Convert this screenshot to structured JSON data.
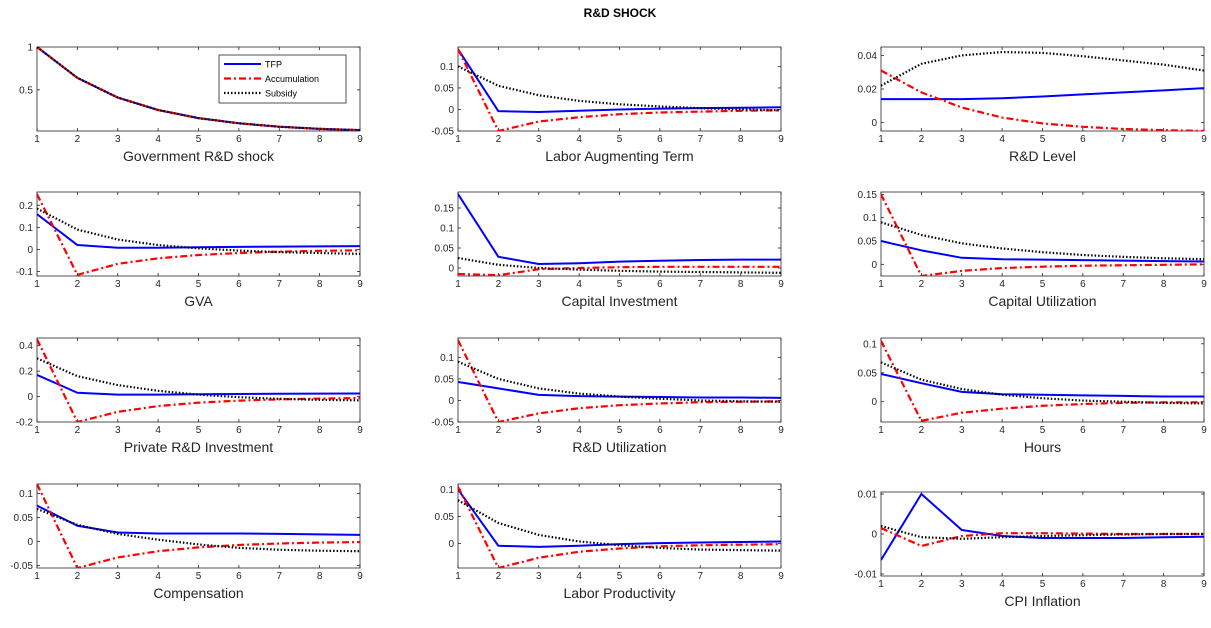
{
  "figure_title": "R&D SHOCK",
  "legend": {
    "placement": "top-right of first panel",
    "entries": [
      {
        "label": "TFP",
        "style": "solid",
        "color": "#0000ff"
      },
      {
        "label": "Accumulation",
        "style": "dash-dot",
        "color": "#ff0000"
      },
      {
        "label": "Subsidy",
        "style": "dotted",
        "color": "#000000"
      }
    ]
  },
  "chart_data": [
    {
      "type": "line",
      "xlabel": "Government R&D shock",
      "x": [
        1,
        2,
        3,
        4,
        5,
        6,
        7,
        8,
        9
      ],
      "xlim": [
        1,
        9
      ],
      "ylim": [
        0.02,
        1.0
      ],
      "yticks": [
        {
          "v": 0.5,
          "label": "0.5"
        },
        {
          "v": 1.0,
          "label": "1"
        }
      ],
      "series": [
        {
          "name": "TFP",
          "values": [
            1.0,
            0.64,
            0.41,
            0.265,
            0.17,
            0.11,
            0.07,
            0.045,
            0.03
          ]
        },
        {
          "name": "Accumulation",
          "values": [
            1.0,
            0.64,
            0.41,
            0.265,
            0.17,
            0.11,
            0.07,
            0.045,
            0.03
          ]
        },
        {
          "name": "Subsidy",
          "values": [
            1.0,
            0.64,
            0.41,
            0.265,
            0.17,
            0.11,
            0.07,
            0.045,
            0.03
          ]
        }
      ]
    },
    {
      "type": "line",
      "xlabel": "Labor  Augmenting Term",
      "x": [
        1,
        2,
        3,
        4,
        5,
        6,
        7,
        8,
        9
      ],
      "xlim": [
        1,
        9
      ],
      "ylim": [
        -0.05,
        0.145
      ],
      "yticks": [
        {
          "v": -0.05,
          "label": "-0.05"
        },
        {
          "v": 0,
          "label": "0"
        },
        {
          "v": 0.05,
          "label": "0.05"
        },
        {
          "v": 0.1,
          "label": "0.1"
        }
      ],
      "series": [
        {
          "name": "TFP",
          "values": [
            0.14,
            -0.004,
            -0.006,
            -0.003,
            0.0,
            0.002,
            0.003,
            0.004,
            0.005
          ]
        },
        {
          "name": "Accumulation",
          "values": [
            0.14,
            -0.05,
            -0.028,
            -0.018,
            -0.011,
            -0.007,
            -0.005,
            -0.003,
            -0.002
          ]
        },
        {
          "name": "Subsidy",
          "values": [
            0.1,
            0.055,
            0.033,
            0.02,
            0.012,
            0.007,
            0.003,
            0.0,
            -0.002
          ]
        }
      ]
    },
    {
      "type": "line",
      "xlabel": "R&D Level",
      "x": [
        1,
        2,
        3,
        4,
        5,
        6,
        7,
        8,
        9
      ],
      "xlim": [
        1,
        9
      ],
      "ylim": [
        -0.005,
        0.045
      ],
      "yticks": [
        {
          "v": 0,
          "label": "0"
        },
        {
          "v": 0.02,
          "label": "0.02"
        },
        {
          "v": 0.04,
          "label": "0.04"
        }
      ],
      "series": [
        {
          "name": "TFP",
          "values": [
            0.014,
            0.014,
            0.014,
            0.0145,
            0.0155,
            0.0168,
            0.018,
            0.0192,
            0.0205
          ]
        },
        {
          "name": "Accumulation",
          "values": [
            0.031,
            0.018,
            0.009,
            0.003,
            -0.0005,
            -0.0025,
            -0.0038,
            -0.0045,
            -0.005
          ]
        },
        {
          "name": "Subsidy",
          "values": [
            0.022,
            0.035,
            0.04,
            0.042,
            0.0415,
            0.0395,
            0.037,
            0.0345,
            0.031
          ]
        }
      ]
    },
    {
      "type": "line",
      "xlabel": "GVA",
      "x": [
        1,
        2,
        3,
        4,
        5,
        6,
        7,
        8,
        9
      ],
      "xlim": [
        1,
        9
      ],
      "ylim": [
        -0.12,
        0.26
      ],
      "yticks": [
        {
          "v": -0.1,
          "label": "-0.1"
        },
        {
          "v": 0,
          "label": "0"
        },
        {
          "v": 0.1,
          "label": "0.1"
        },
        {
          "v": 0.2,
          "label": "0.2"
        }
      ],
      "series": [
        {
          "name": "TFP",
          "values": [
            0.16,
            0.02,
            0.008,
            0.008,
            0.01,
            0.012,
            0.013,
            0.014,
            0.015
          ]
        },
        {
          "name": "Accumulation",
          "values": [
            0.25,
            -0.115,
            -0.065,
            -0.04,
            -0.025,
            -0.016,
            -0.01,
            -0.006,
            -0.004
          ]
        },
        {
          "name": "Subsidy",
          "values": [
            0.185,
            0.09,
            0.045,
            0.02,
            0.005,
            -0.005,
            -0.012,
            -0.016,
            -0.02
          ]
        }
      ]
    },
    {
      "type": "line",
      "xlabel": "Capital Investment",
      "x": [
        1,
        2,
        3,
        4,
        5,
        6,
        7,
        8,
        9
      ],
      "xlim": [
        1,
        9
      ],
      "ylim": [
        -0.02,
        0.19
      ],
      "yticks": [
        {
          "v": 0,
          "label": "0"
        },
        {
          "v": 0.05,
          "label": "0.05"
        },
        {
          "v": 0.1,
          "label": "0.1"
        },
        {
          "v": 0.15,
          "label": "0.15"
        }
      ],
      "series": [
        {
          "name": "TFP",
          "values": [
            0.185,
            0.028,
            0.01,
            0.012,
            0.016,
            0.018,
            0.02,
            0.021,
            0.021
          ]
        },
        {
          "name": "Accumulation",
          "values": [
            -0.015,
            -0.018,
            -0.003,
            0.0,
            0.002,
            0.003,
            0.003,
            0.003,
            0.003
          ]
        },
        {
          "name": "Subsidy",
          "values": [
            0.025,
            0.008,
            0.0,
            -0.004,
            -0.007,
            -0.009,
            -0.01,
            -0.011,
            -0.012
          ]
        }
      ]
    },
    {
      "type": "line",
      "xlabel": "Capital Utilization",
      "x": [
        1,
        2,
        3,
        4,
        5,
        6,
        7,
        8,
        9
      ],
      "xlim": [
        1,
        9
      ],
      "ylim": [
        -0.025,
        0.155
      ],
      "yticks": [
        {
          "v": 0,
          "label": "0"
        },
        {
          "v": 0.05,
          "label": "0.05"
        },
        {
          "v": 0.1,
          "label": "0.1"
        },
        {
          "v": 0.15,
          "label": "0.15"
        }
      ],
      "series": [
        {
          "name": "TFP",
          "values": [
            0.05,
            0.03,
            0.014,
            0.011,
            0.01,
            0.009,
            0.008,
            0.007,
            0.006
          ]
        },
        {
          "name": "Accumulation",
          "values": [
            0.15,
            -0.025,
            -0.014,
            -0.008,
            -0.005,
            -0.003,
            -0.002,
            -0.001,
            0.0
          ]
        },
        {
          "name": "Subsidy",
          "values": [
            0.09,
            0.063,
            0.045,
            0.034,
            0.026,
            0.02,
            0.016,
            0.013,
            0.011
          ]
        }
      ]
    },
    {
      "type": "line",
      "xlabel": "Private R&D Investment",
      "x": [
        1,
        2,
        3,
        4,
        5,
        6,
        7,
        8,
        9
      ],
      "xlim": [
        1,
        9
      ],
      "ylim": [
        -0.2,
        0.46
      ],
      "yticks": [
        {
          "v": -0.2,
          "label": "-0.2"
        },
        {
          "v": 0,
          "label": "0"
        },
        {
          "v": 0.2,
          "label": "0.2"
        },
        {
          "v": 0.4,
          "label": "0.4"
        }
      ],
      "series": [
        {
          "name": "TFP",
          "values": [
            0.17,
            0.03,
            0.015,
            0.015,
            0.018,
            0.02,
            0.022,
            0.023,
            0.024
          ]
        },
        {
          "name": "Accumulation",
          "values": [
            0.45,
            -0.2,
            -0.12,
            -0.075,
            -0.048,
            -0.032,
            -0.022,
            -0.016,
            -0.012
          ]
        },
        {
          "name": "Subsidy",
          "values": [
            0.3,
            0.16,
            0.09,
            0.045,
            0.015,
            -0.005,
            -0.018,
            -0.026,
            -0.03
          ]
        }
      ]
    },
    {
      "type": "line",
      "xlabel": "R&D Utilization",
      "x": [
        1,
        2,
        3,
        4,
        5,
        6,
        7,
        8,
        9
      ],
      "xlim": [
        1,
        9
      ],
      "ylim": [
        -0.05,
        0.145
      ],
      "yticks": [
        {
          "v": -0.05,
          "label": "-0.05"
        },
        {
          "v": 0,
          "label": "0"
        },
        {
          "v": 0.05,
          "label": "0.05"
        },
        {
          "v": 0.1,
          "label": "0.1"
        }
      ],
      "series": [
        {
          "name": "TFP",
          "values": [
            0.043,
            0.028,
            0.013,
            0.01,
            0.009,
            0.008,
            0.007,
            0.007,
            0.006
          ]
        },
        {
          "name": "Accumulation",
          "values": [
            0.14,
            -0.05,
            -0.03,
            -0.018,
            -0.011,
            -0.007,
            -0.004,
            -0.003,
            -0.002
          ]
        },
        {
          "name": "Subsidy",
          "values": [
            0.09,
            0.05,
            0.028,
            0.016,
            0.009,
            0.004,
            0.0,
            -0.002,
            -0.003
          ]
        }
      ]
    },
    {
      "type": "line",
      "xlabel": "Hours",
      "x": [
        1,
        2,
        3,
        4,
        5,
        6,
        7,
        8,
        9
      ],
      "xlim": [
        1,
        9
      ],
      "ylim": [
        -0.035,
        0.11
      ],
      "yticks": [
        {
          "v": 0,
          "label": "0"
        },
        {
          "v": 0.05,
          "label": "0.05"
        },
        {
          "v": 0.1,
          "label": "0.1"
        }
      ],
      "series": [
        {
          "name": "TFP",
          "values": [
            0.048,
            0.032,
            0.017,
            0.013,
            0.012,
            0.011,
            0.01,
            0.009,
            0.009
          ]
        },
        {
          "name": "Accumulation",
          "values": [
            0.105,
            -0.033,
            -0.019,
            -0.012,
            -0.007,
            -0.004,
            -0.002,
            -0.001,
            -0.001
          ]
        },
        {
          "name": "Subsidy",
          "values": [
            0.068,
            0.038,
            0.022,
            0.012,
            0.006,
            0.002,
            0.0,
            -0.002,
            -0.003
          ]
        }
      ]
    },
    {
      "type": "line",
      "xlabel": "Compensation",
      "x": [
        1,
        2,
        3,
        4,
        5,
        6,
        7,
        8,
        9
      ],
      "xlim": [
        1,
        9
      ],
      "ylim": [
        -0.055,
        0.12
      ],
      "yticks": [
        {
          "v": -0.05,
          "label": "-0.05"
        },
        {
          "v": 0,
          "label": "0"
        },
        {
          "v": 0.05,
          "label": "0.05"
        },
        {
          "v": 0.1,
          "label": "0.1"
        }
      ],
      "series": [
        {
          "name": "TFP",
          "values": [
            0.075,
            0.033,
            0.019,
            0.017,
            0.017,
            0.017,
            0.016,
            0.015,
            0.014
          ]
        },
        {
          "name": "Accumulation",
          "values": [
            0.12,
            -0.055,
            -0.033,
            -0.02,
            -0.012,
            -0.007,
            -0.004,
            -0.002,
            -0.001
          ]
        },
        {
          "name": "Subsidy",
          "values": [
            0.068,
            0.035,
            0.016,
            0.004,
            -0.006,
            -0.013,
            -0.017,
            -0.019,
            -0.02
          ]
        }
      ]
    },
    {
      "type": "line",
      "xlabel": "Labor  Productivity",
      "x": [
        1,
        2,
        3,
        4,
        5,
        6,
        7,
        8,
        9
      ],
      "xlim": [
        1,
        9
      ],
      "ylim": [
        -0.045,
        0.11
      ],
      "yticks": [
        {
          "v": 0,
          "label": "0"
        },
        {
          "v": 0.05,
          "label": "0.05"
        },
        {
          "v": 0.1,
          "label": "0.1"
        }
      ],
      "series": [
        {
          "name": "TFP",
          "values": [
            0.1,
            -0.004,
            -0.006,
            -0.004,
            -0.001,
            0.001,
            0.002,
            0.003,
            0.004
          ]
        },
        {
          "name": "Accumulation",
          "values": [
            0.105,
            -0.045,
            -0.026,
            -0.015,
            -0.009,
            -0.005,
            -0.003,
            -0.002,
            -0.001
          ]
        },
        {
          "name": "Subsidy",
          "values": [
            0.08,
            0.038,
            0.016,
            0.004,
            -0.003,
            -0.008,
            -0.011,
            -0.012,
            -0.013
          ]
        }
      ]
    },
    {
      "type": "line",
      "xlabel": "CPI Inflation",
      "x": [
        1,
        2,
        3,
        4,
        5,
        6,
        7,
        8,
        9
      ],
      "xlim": [
        1,
        9
      ],
      "ylim": [
        -0.0105,
        0.0105
      ],
      "yticks": [
        {
          "v": -0.01,
          "label": "-0.01"
        },
        {
          "v": 0,
          "label": "0"
        },
        {
          "v": 0.01,
          "label": "0.01"
        }
      ],
      "series": [
        {
          "name": "TFP",
          "values": [
            -0.0065,
            0.01,
            0.001,
            -0.0005,
            -0.001,
            -0.001,
            -0.001,
            -0.0008,
            -0.0007
          ]
        },
        {
          "name": "Accumulation",
          "values": [
            0.0015,
            -0.003,
            -0.0005,
            0.0002,
            0.0002,
            0.0001,
            0.0,
            0.0,
            0.0
          ]
        },
        {
          "name": "Subsidy",
          "values": [
            0.002,
            -0.0008,
            -0.0012,
            -0.0008,
            -0.0005,
            -0.0003,
            -0.0001,
            0.0,
            0.0
          ]
        }
      ]
    }
  ]
}
